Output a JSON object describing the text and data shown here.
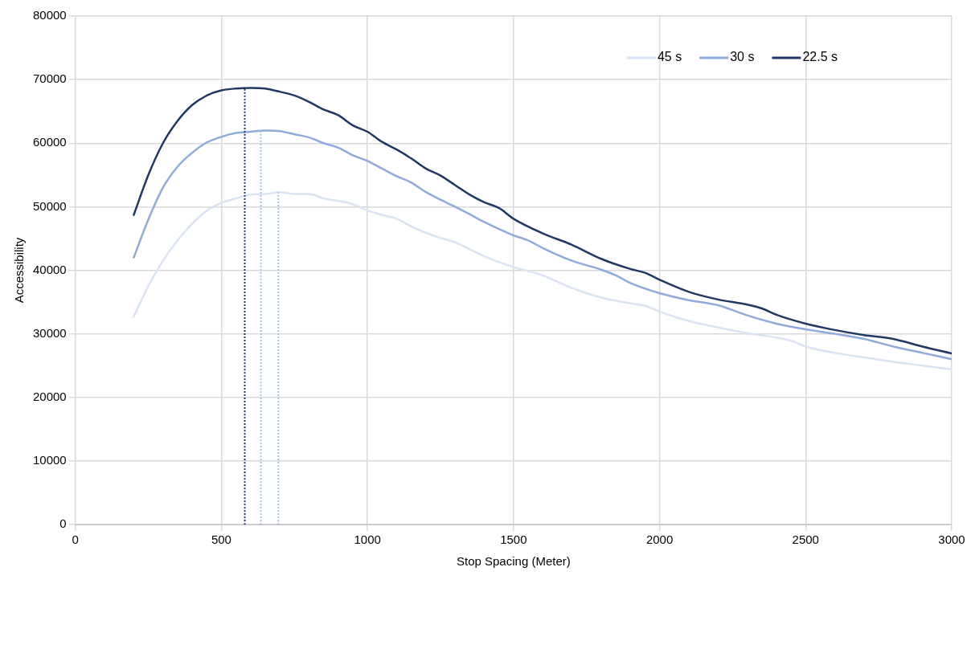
{
  "chart_data": {
    "type": "line",
    "xlabel": "Stop Spacing (Meter)",
    "ylabel": "Accessibility",
    "xlim": [
      0,
      3000
    ],
    "xticks": [
      0,
      500,
      1000,
      1500,
      2000,
      2500,
      3000
    ],
    "ylim": [
      0,
      80000
    ],
    "yticks": [
      0,
      10000,
      20000,
      30000,
      40000,
      50000,
      60000,
      70000,
      80000
    ],
    "grid": true,
    "legend": "top right",
    "marker": "none",
    "line_style": "solid",
    "series": [
      {
        "name": "45 s",
        "color": "#dae3f3",
        "x": [
          200,
          250,
          300,
          350,
          400,
          450,
          500,
          550,
          600,
          650,
          700,
          750,
          800,
          850,
          900,
          950,
          1000,
          1050,
          1100,
          1150,
          1200,
          1250,
          1300,
          1350,
          1400,
          1500,
          1600,
          1700,
          1800,
          1900,
          1950,
          2000,
          2100,
          2200,
          2300,
          2400,
          2450,
          2500,
          2600,
          2700,
          2800,
          2900,
          3000
        ],
        "values": [
          32700,
          37500,
          41500,
          44700,
          47300,
          49400,
          50600,
          51300,
          51900,
          52000,
          52300,
          52000,
          52000,
          51300,
          50900,
          50400,
          49400,
          48700,
          48100,
          46900,
          45900,
          45100,
          44400,
          43300,
          42200,
          40500,
          39200,
          37200,
          35700,
          34800,
          34400,
          33500,
          32000,
          31000,
          30100,
          29400,
          28900,
          28000,
          27000,
          26300,
          25600,
          25000,
          24400
        ]
      },
      {
        "name": "30 s",
        "color": "#8faadc",
        "x": [
          200,
          250,
          300,
          350,
          400,
          450,
          500,
          550,
          600,
          650,
          700,
          750,
          800,
          850,
          900,
          950,
          1000,
          1050,
          1100,
          1150,
          1200,
          1250,
          1300,
          1350,
          1400,
          1450,
          1500,
          1550,
          1600,
          1700,
          1800,
          1850,
          1900,
          2000,
          2100,
          2200,
          2300,
          2400,
          2500,
          2600,
          2700,
          2800,
          2900,
          3000
        ],
        "values": [
          42000,
          48000,
          53000,
          56300,
          58500,
          60100,
          61000,
          61600,
          61800,
          62000,
          61900,
          61400,
          60900,
          60000,
          59300,
          58100,
          57200,
          56000,
          54800,
          53800,
          52300,
          51100,
          50000,
          48800,
          47600,
          46500,
          45500,
          44700,
          43500,
          41500,
          40100,
          39200,
          38000,
          36400,
          35300,
          34500,
          32900,
          31600,
          30700,
          30000,
          29200,
          28000,
          27000,
          26000
        ]
      },
      {
        "name": "22.5 s",
        "color": "#203864",
        "x": [
          200,
          250,
          300,
          350,
          400,
          450,
          500,
          550,
          600,
          650,
          700,
          750,
          800,
          850,
          900,
          950,
          1000,
          1050,
          1100,
          1150,
          1200,
          1250,
          1300,
          1350,
          1400,
          1450,
          1500,
          1600,
          1700,
          1800,
          1900,
          1950,
          2000,
          2100,
          2200,
          2300,
          2350,
          2400,
          2500,
          2600,
          2700,
          2800,
          2900,
          3000
        ],
        "values": [
          48700,
          55000,
          60000,
          63500,
          66000,
          67500,
          68300,
          68600,
          68700,
          68600,
          68100,
          67500,
          66500,
          65300,
          64400,
          62800,
          61800,
          60200,
          59000,
          57600,
          56000,
          54900,
          53400,
          51900,
          50700,
          49800,
          48100,
          45800,
          44000,
          41800,
          40200,
          39600,
          38500,
          36600,
          35400,
          34600,
          34000,
          33000,
          31600,
          30600,
          29800,
          29200,
          28000,
          26900
        ]
      },
      {
        "type": "line",
        "color": "#203864",
        "line_style": "dotted",
        "x": [
          580,
          580
        ],
        "values": [
          0,
          68700
        ]
      },
      {
        "type": "line",
        "color": "#9dc3e6",
        "line_style": "dotted",
        "x": [
          635,
          635
        ],
        "values": [
          0,
          62000
        ]
      },
      {
        "type": "line",
        "color": "#9dc3e6",
        "line_style": "dotted",
        "x": [
          695,
          695
        ],
        "values": [
          0,
          52300
        ]
      }
    ]
  }
}
